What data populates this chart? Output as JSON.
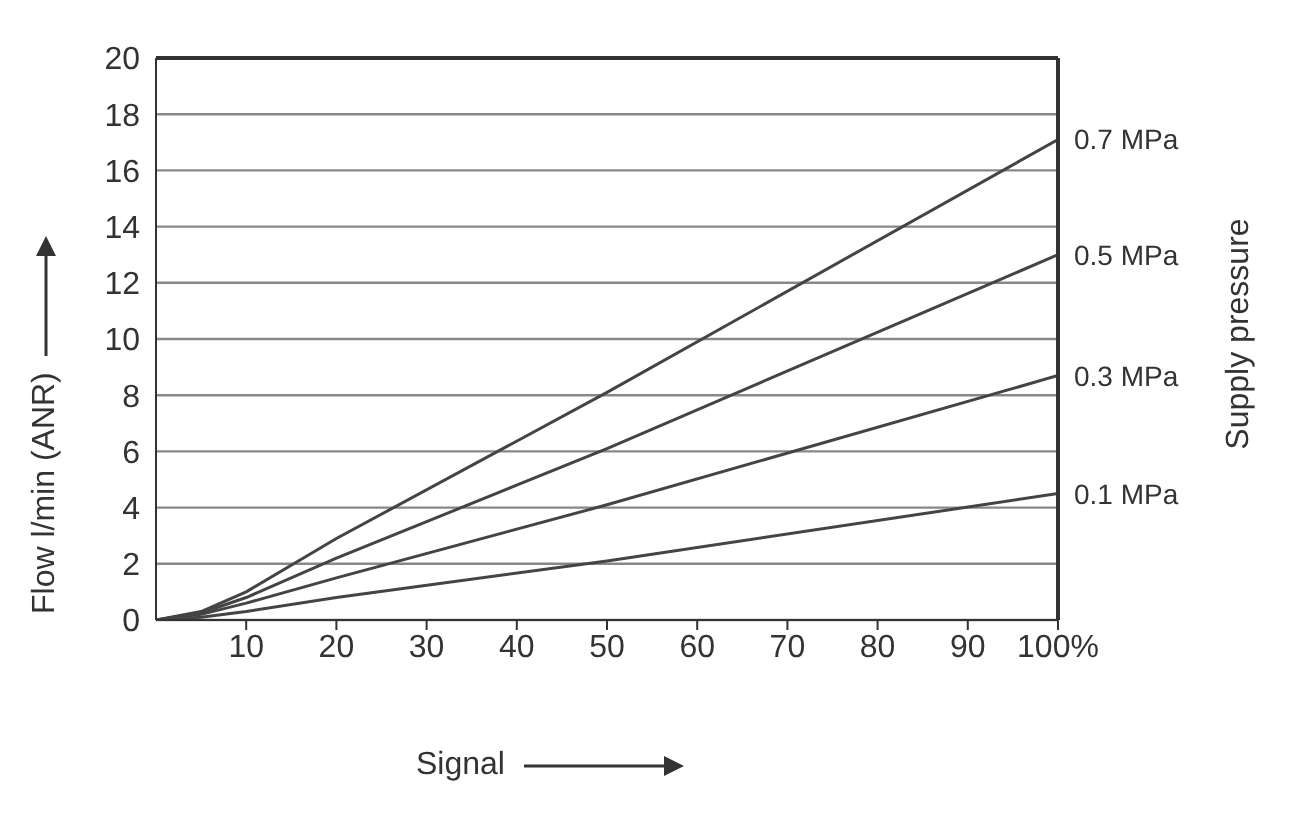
{
  "chart_data": {
    "type": "line",
    "xlabel": "Signal",
    "ylabel": "Flow l/min (ANR)",
    "y2label": "Supply pressure",
    "xlim": [
      0,
      100
    ],
    "xticks": [
      10,
      20,
      30,
      40,
      50,
      60,
      70,
      80,
      90,
      {
        "value": 100,
        "label": "100%"
      }
    ],
    "ylim": [
      0,
      20
    ],
    "yticks": [
      0,
      2,
      4,
      6,
      8,
      10,
      12,
      14,
      16,
      18,
      20
    ],
    "grid": "y",
    "marker": "none",
    "line_style": "solid",
    "x": [
      0,
      5,
      10,
      20,
      50,
      100
    ],
    "series": [
      {
        "name": "0.7 MPa",
        "color": "#444444",
        "values": [
          0,
          0.3,
          1.0,
          2.9,
          8.1,
          17.1
        ]
      },
      {
        "name": "0.5 MPa",
        "color": "#444444",
        "values": [
          0,
          0.25,
          0.8,
          2.2,
          6.1,
          13.0
        ]
      },
      {
        "name": "0.3 MPa",
        "color": "#444444",
        "values": [
          0,
          0.2,
          0.6,
          1.5,
          4.1,
          8.7
        ]
      },
      {
        "name": "0.1 MPa",
        "color": "#444444",
        "values": [
          0,
          0.1,
          0.3,
          0.8,
          2.1,
          4.5
        ]
      }
    ]
  }
}
